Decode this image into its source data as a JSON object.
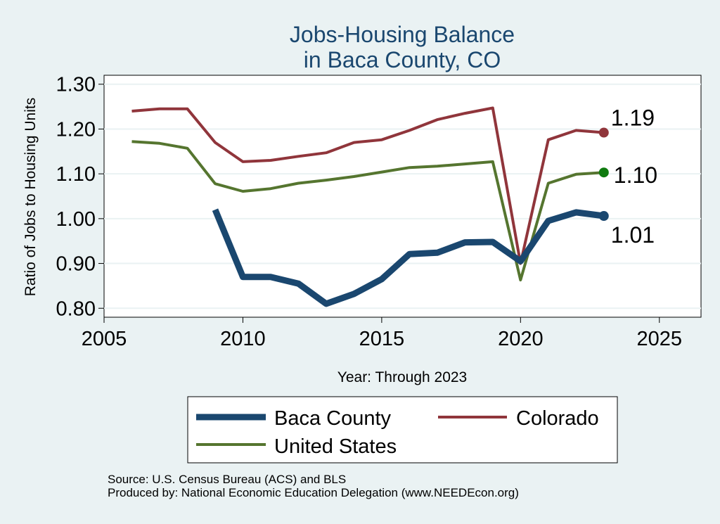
{
  "chart_data": {
    "type": "line",
    "title": [
      "Jobs-Housing Balance",
      "in Baca County, CO"
    ],
    "xlabel": "Year: Through 2023",
    "ylabel": "Ratio of Jobs to Housing Units",
    "xlim": [
      2005,
      2026.5
    ],
    "ylim": [
      0.78,
      1.32
    ],
    "xticks": [
      2005,
      2010,
      2015,
      2020,
      2025
    ],
    "yticks": [
      0.8,
      0.9,
      1.0,
      1.1,
      1.2,
      1.3
    ],
    "ytick_labels": [
      "0.80",
      "0.90",
      "1.00",
      "1.10",
      "1.20",
      "1.30"
    ],
    "grid": "horizontal",
    "legend_position": "bottom",
    "series": [
      {
        "name": "Baca County",
        "color": "#1a476f",
        "x": [
          2009,
          2010,
          2011,
          2012,
          2013,
          2014,
          2015,
          2016,
          2017,
          2018,
          2019,
          2020,
          2021,
          2022,
          2023
        ],
        "values": [
          1.02,
          0.87,
          0.87,
          0.855,
          0.81,
          0.832,
          0.865,
          0.921,
          0.924,
          0.947,
          0.948,
          0.905,
          0.995,
          1.014,
          1.006
        ],
        "end_label": "1.01"
      },
      {
        "name": "Colorado",
        "color": "#90353b",
        "x": [
          2006,
          2007,
          2008,
          2009,
          2010,
          2011,
          2012,
          2013,
          2014,
          2015,
          2016,
          2017,
          2018,
          2019,
          2020,
          2021,
          2022,
          2023
        ],
        "values": [
          1.24,
          1.245,
          1.245,
          1.17,
          1.127,
          1.13,
          1.139,
          1.147,
          1.17,
          1.176,
          1.197,
          1.221,
          1.235,
          1.247,
          0.9,
          1.176,
          1.197,
          1.192
        ],
        "end_label": "1.19"
      },
      {
        "name": "United States",
        "color": "#55752f",
        "x": [
          2006,
          2007,
          2008,
          2009,
          2010,
          2011,
          2012,
          2013,
          2014,
          2015,
          2016,
          2017,
          2018,
          2019,
          2020,
          2021,
          2022,
          2023
        ],
        "values": [
          1.172,
          1.168,
          1.157,
          1.078,
          1.061,
          1.067,
          1.079,
          1.086,
          1.094,
          1.104,
          1.114,
          1.117,
          1.122,
          1.127,
          0.863,
          1.079,
          1.099,
          1.103
        ],
        "end_label": "1.10"
      }
    ],
    "end_marker_colors": {
      "Baca County": "#1a476f",
      "Colorado": "#90353b",
      "United States": "#0f7a0f"
    }
  },
  "legend": {
    "items": [
      "Baca County",
      "Colorado",
      "United States"
    ]
  },
  "source": {
    "line1": "Source: U.S. Census Bureau (ACS) and BLS",
    "line2": "Produced by: National Economic Education Delegation (www.NEEDEcon.org)"
  }
}
